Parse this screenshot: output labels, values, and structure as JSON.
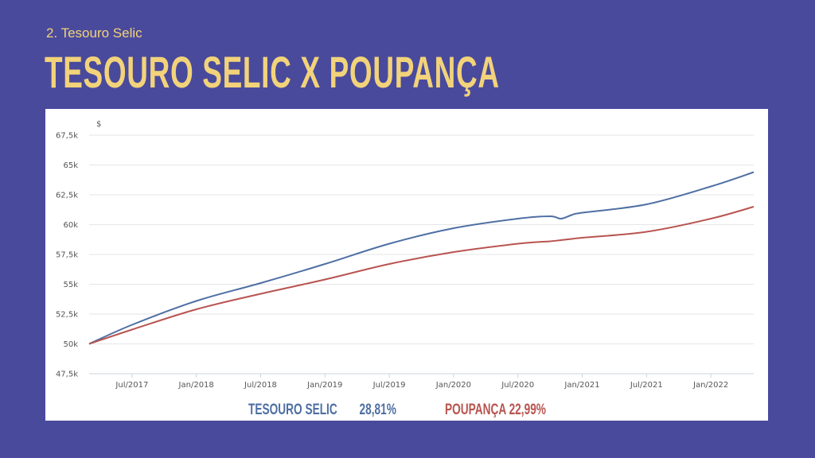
{
  "slide": {
    "subtitle": "2. Tesouro Selic",
    "title": "TESOURO SELIC X POUPANÇA"
  },
  "legend": {
    "selic_label": "TESOURO SELIC",
    "selic_value": "28,81%",
    "poupanca_label": "POUPANÇA",
    "poupanca_value": "22,99%"
  },
  "colors": {
    "background": "#4a4a9c",
    "accent": "#f2d37a",
    "selic": "#4f6fa3",
    "poupanca": "#b85450"
  },
  "chart_data": {
    "type": "line",
    "ylabel": "$",
    "ylim": [
      47500,
      67500
    ],
    "yticks": [
      47500,
      50000,
      52500,
      55000,
      57500,
      60000,
      62500,
      65000,
      67500
    ],
    "ytick_labels": [
      "47,5k",
      "50k",
      "52,5k",
      "55k",
      "57,5k",
      "60k",
      "62,5k",
      "65k",
      "67,5k"
    ],
    "x_ticks": [
      "Jul/2017",
      "Jan/2018",
      "Jul/2018",
      "Jan/2019",
      "Jul/2019",
      "Jan/2020",
      "Jul/2020",
      "Jan/2021",
      "Jul/2021",
      "Jan/2022"
    ],
    "x": [
      "Mar/2017",
      "Jul/2017",
      "Jan/2018",
      "Jul/2018",
      "Jan/2019",
      "Jul/2019",
      "Jan/2020",
      "Jul/2020",
      "Oct/2020",
      "Nov/2020",
      "Dec/2020",
      "Jan/2021",
      "Jul/2021",
      "Jan/2022",
      "May/2022"
    ],
    "grid": true,
    "series": [
      {
        "name": "TESOURO SELIC",
        "values": [
          50000,
          51600,
          53600,
          55100,
          56700,
          58400,
          59700,
          60500,
          60700,
          60500,
          60800,
          61000,
          61700,
          63200,
          64400
        ]
      },
      {
        "name": "POUPANÇA",
        "values": [
          50000,
          51200,
          52900,
          54200,
          55400,
          56700,
          57700,
          58400,
          58600,
          58700,
          58800,
          58900,
          59400,
          60500,
          61500
        ]
      }
    ]
  }
}
